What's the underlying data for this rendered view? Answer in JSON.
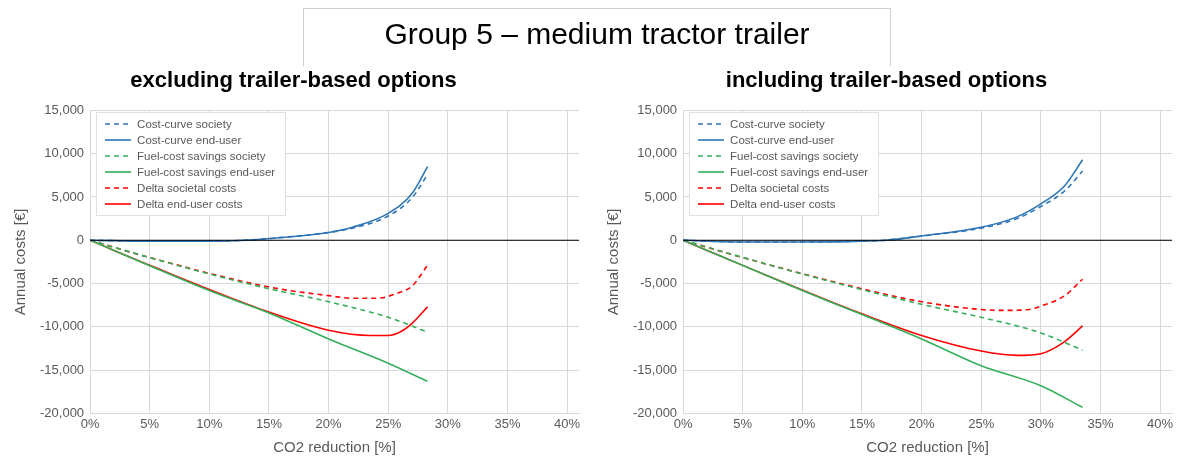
{
  "chart_data": [
    {
      "type": "other",
      "title": "Group 5 – medium tractor trailer"
    },
    {
      "type": "line",
      "title": "excluding trailer-based options",
      "xlabel": "CO2 reduction [%]",
      "ylabel": "Annual costs [€]",
      "xlim": [
        0,
        41
      ],
      "xticks": [
        {
          "value": 0,
          "label": "0%"
        },
        {
          "value": 5,
          "label": "5%"
        },
        {
          "value": 10,
          "label": "10%"
        },
        {
          "value": 15,
          "label": "15%"
        },
        {
          "value": 20,
          "label": "20%"
        },
        {
          "value": 25,
          "label": "25%"
        },
        {
          "value": 30,
          "label": "30%"
        },
        {
          "value": 35,
          "label": "35%"
        },
        {
          "value": 40,
          "label": "40%"
        }
      ],
      "ylim": [
        -20000,
        15000
      ],
      "yticks": [
        {
          "value": -20000,
          "label": "-20,000"
        },
        {
          "value": -15000,
          "label": "-15,000"
        },
        {
          "value": -10000,
          "label": "-10,000"
        },
        {
          "value": -5000,
          "label": "-5,000"
        },
        {
          "value": 0,
          "label": "0"
        },
        {
          "value": 5000,
          "label": "5,000"
        },
        {
          "value": 10000,
          "label": "10,000"
        },
        {
          "value": 15000,
          "label": "15,000"
        }
      ],
      "grid": true,
      "legend": "top left",
      "marker": "none",
      "ref_lines": [
        {
          "axis": "y",
          "value": 0,
          "color": "#000000"
        }
      ],
      "series": [
        {
          "name": "Cost-curve society",
          "color": "#2e75b6",
          "line_style": "dashed",
          "x": [
            0,
            5,
            10,
            13,
            15,
            20,
            22,
            25,
            27,
            28.3
          ],
          "values": [
            0,
            -100,
            -100,
            0,
            200,
            900,
            1400,
            2800,
            4900,
            7600
          ]
        },
        {
          "name": "Cost-curve end-user",
          "color": "#2e75b6",
          "line_style": "solid",
          "x": [
            0,
            5,
            10,
            13,
            15,
            20,
            22,
            25,
            27,
            28.3
          ],
          "values": [
            0,
            -100,
            -100,
            0,
            200,
            900,
            1500,
            3100,
            5400,
            8500
          ]
        },
        {
          "name": "Fuel-cost savings society",
          "color": "#33b05a",
          "line_style": "dashed",
          "x": [
            0,
            5,
            10,
            15,
            20,
            25,
            28.3
          ],
          "values": [
            0,
            -2000,
            -3900,
            -5600,
            -7100,
            -8900,
            -10600
          ]
        },
        {
          "name": "Fuel-cost savings end-user",
          "color": "#33b05a",
          "line_style": "solid",
          "x": [
            0,
            10,
            15,
            20,
            25,
            28.3
          ],
          "values": [
            0,
            -5800,
            -8400,
            -11400,
            -14200,
            -16300
          ]
        },
        {
          "name": "Delta societal costs",
          "color": "#ff0000",
          "line_style": "dashed",
          "x": [
            0,
            5,
            15,
            20,
            22,
            24,
            26,
            27,
            28.3
          ],
          "values": [
            0,
            -2000,
            -5400,
            -6400,
            -6700,
            -6700,
            -6000,
            -5300,
            -2900
          ]
        },
        {
          "name": "Delta end-user costs",
          "color": "#ff0000",
          "line_style": "solid",
          "x": [
            0,
            5,
            15,
            20,
            23.5,
            25,
            26,
            27,
            28.3
          ],
          "values": [
            0,
            -2900,
            -8300,
            -10400,
            -11000,
            -11000,
            -10600,
            -9600,
            -7700
          ]
        }
      ]
    },
    {
      "type": "line",
      "title": "including trailer-based options",
      "xlabel": "CO2 reduction [%]",
      "ylabel": "Annual costs [€]",
      "xlim": [
        0,
        41
      ],
      "xticks": [
        {
          "value": 0,
          "label": "0%"
        },
        {
          "value": 5,
          "label": "5%"
        },
        {
          "value": 10,
          "label": "10%"
        },
        {
          "value": 15,
          "label": "15%"
        },
        {
          "value": 20,
          "label": "20%"
        },
        {
          "value": 25,
          "label": "25%"
        },
        {
          "value": 30,
          "label": "30%"
        },
        {
          "value": 35,
          "label": "35%"
        },
        {
          "value": 40,
          "label": "40%"
        }
      ],
      "ylim": [
        -20000,
        15000
      ],
      "yticks": [
        {
          "value": -20000,
          "label": "-20,000"
        },
        {
          "value": -15000,
          "label": "-15,000"
        },
        {
          "value": -10000,
          "label": "-10,000"
        },
        {
          "value": -5000,
          "label": "-5,000"
        },
        {
          "value": 0,
          "label": "0"
        },
        {
          "value": 5000,
          "label": "5,000"
        },
        {
          "value": 10000,
          "label": "10,000"
        },
        {
          "value": 15000,
          "label": "15,000"
        }
      ],
      "grid": true,
      "legend": "top left",
      "marker": "none",
      "ref_lines": [
        {
          "axis": "y",
          "value": 0,
          "color": "#000000"
        }
      ],
      "series": [
        {
          "name": "Cost-curve society",
          "color": "#2e75b6",
          "line_style": "dashed",
          "x": [
            0,
            5,
            10,
            15,
            17,
            20,
            25,
            28,
            30,
            32,
            33.5
          ],
          "values": [
            0,
            -200,
            -200,
            -100,
            0,
            500,
            1400,
            2500,
            3900,
            5700,
            8000
          ]
        },
        {
          "name": "Cost-curve end-user",
          "color": "#2e75b6",
          "line_style": "solid",
          "x": [
            0,
            5,
            10,
            15,
            17,
            20,
            25,
            28,
            30,
            32,
            33.5
          ],
          "values": [
            0,
            -200,
            -200,
            -100,
            0,
            500,
            1500,
            2700,
            4200,
            6300,
            9300
          ]
        },
        {
          "name": "Fuel-cost savings society",
          "color": "#33b05a",
          "line_style": "dashed",
          "x": [
            0,
            10,
            20,
            25,
            30,
            33.5
          ],
          "values": [
            0,
            -3900,
            -7400,
            -8900,
            -10700,
            -12700
          ]
        },
        {
          "name": "Fuel-cost savings end-user",
          "color": "#33b05a",
          "line_style": "solid",
          "x": [
            0,
            10,
            20,
            25,
            30,
            33.5
          ],
          "values": [
            0,
            -5800,
            -11400,
            -14500,
            -16800,
            -19300
          ]
        },
        {
          "name": "Delta societal costs",
          "color": "#ff0000",
          "line_style": "dashed",
          "x": [
            0,
            5,
            15,
            20,
            25,
            27,
            29,
            30,
            32,
            33.5
          ],
          "values": [
            0,
            -2000,
            -5600,
            -7100,
            -8000,
            -8100,
            -8000,
            -7600,
            -6400,
            -4500
          ]
        },
        {
          "name": "Delta end-user costs",
          "color": "#ff0000",
          "line_style": "solid",
          "x": [
            0,
            5,
            15,
            20,
            25,
            28,
            30,
            32,
            33.5
          ],
          "values": [
            0,
            -2900,
            -8500,
            -11000,
            -12800,
            -13300,
            -13100,
            -11700,
            -9900
          ]
        }
      ]
    }
  ]
}
